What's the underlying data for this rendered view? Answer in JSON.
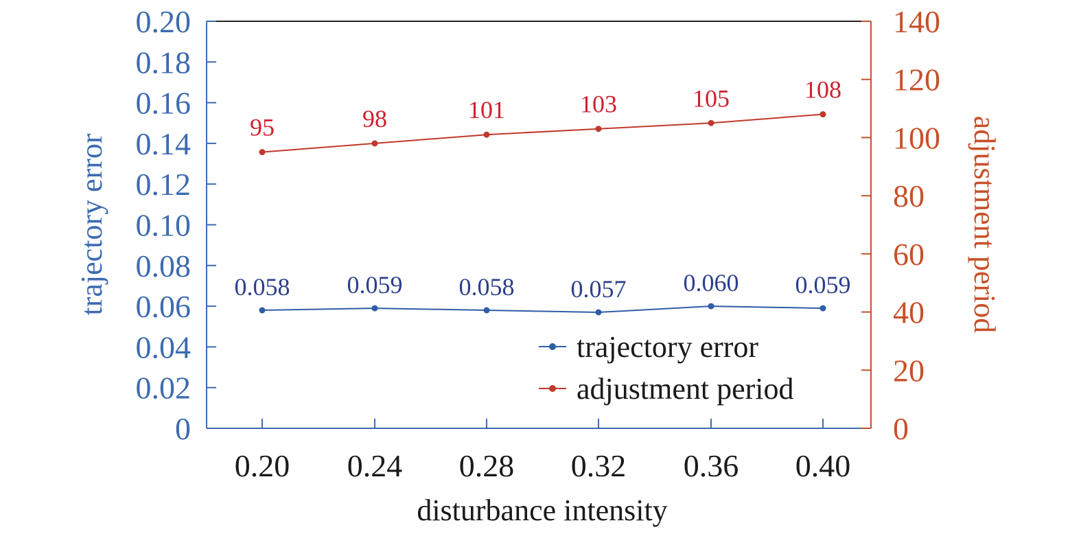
{
  "chart_data": {
    "type": "line",
    "x_label": "disturbance intensity",
    "categories": [
      "0.20",
      "0.24",
      "0.28",
      "0.32",
      "0.36",
      "0.40"
    ],
    "y_left": {
      "label": "trajectory error",
      "range": [
        0,
        0.2
      ],
      "ticks": [
        "0",
        "0.02",
        "0.04",
        "0.06",
        "0.08",
        "0.10",
        "0.12",
        "0.14",
        "0.16",
        "0.18",
        "0.20"
      ],
      "color": "#3D6BB0"
    },
    "y_right": {
      "label": "adjustment period",
      "range": [
        0,
        140
      ],
      "ticks": [
        "0",
        "20",
        "40",
        "60",
        "80",
        "100",
        "120",
        "140"
      ],
      "color": "#C8502A"
    },
    "series": [
      {
        "name": "trajectory error",
        "axis": "left",
        "values": [
          0.058,
          0.059,
          0.058,
          0.057,
          0.06,
          0.059
        ],
        "labels": [
          "0.058",
          "0.059",
          "0.058",
          "0.057",
          "0.060",
          "0.059"
        ],
        "line_color": "#2F5DA8",
        "label_color": "#2B3F8C"
      },
      {
        "name": "adjustment period",
        "axis": "right",
        "values": [
          95,
          98,
          101,
          103,
          105,
          108
        ],
        "labels": [
          "95",
          "98",
          "101",
          "103",
          "105",
          "108"
        ],
        "line_color": "#C0392B",
        "label_color": "#D0202E"
      }
    ],
    "legend_position": "bottom-right",
    "grid": false
  }
}
